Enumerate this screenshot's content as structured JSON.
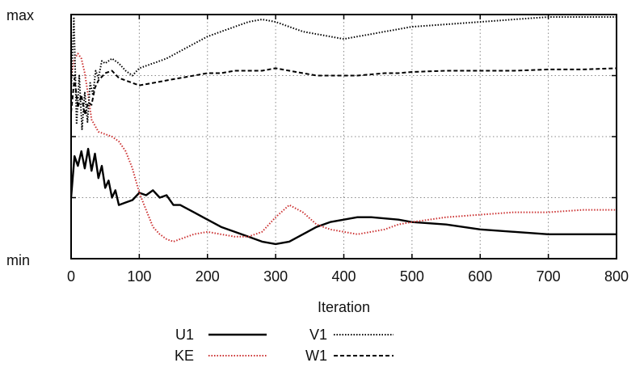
{
  "chart_data": {
    "type": "line",
    "title": "",
    "xlabel": "Iteration",
    "ylabel": "",
    "xlim": [
      0,
      800
    ],
    "ylim": [
      0,
      1
    ],
    "x_ticks": [
      "0",
      "100",
      "200",
      "300",
      "400",
      "500",
      "600",
      "700",
      "800"
    ],
    "y_tick_labels": {
      "top": "max",
      "bottom": "min"
    },
    "grid": true,
    "legend": "bottom",
    "series": [
      {
        "name": "U1",
        "color": "#000000",
        "dash": "solid",
        "x": [
          0,
          5,
          10,
          15,
          20,
          25,
          30,
          35,
          40,
          45,
          50,
          55,
          60,
          65,
          70,
          80,
          90,
          100,
          110,
          120,
          130,
          140,
          150,
          160,
          180,
          200,
          220,
          240,
          260,
          280,
          300,
          320,
          340,
          360,
          380,
          400,
          420,
          440,
          460,
          480,
          500,
          550,
          600,
          650,
          700,
          750,
          800
        ],
        "y": [
          0.25,
          0.42,
          0.38,
          0.44,
          0.37,
          0.45,
          0.36,
          0.43,
          0.33,
          0.38,
          0.29,
          0.32,
          0.25,
          0.28,
          0.22,
          0.23,
          0.24,
          0.27,
          0.26,
          0.28,
          0.25,
          0.26,
          0.22,
          0.22,
          0.19,
          0.16,
          0.13,
          0.11,
          0.09,
          0.07,
          0.06,
          0.07,
          0.1,
          0.13,
          0.15,
          0.16,
          0.17,
          0.17,
          0.165,
          0.16,
          0.15,
          0.14,
          0.12,
          0.11,
          0.1,
          0.1,
          0.1
        ]
      },
      {
        "name": "KE",
        "color": "#cc3333",
        "dash": "dotted",
        "x": [
          0,
          5,
          10,
          15,
          20,
          25,
          30,
          40,
          50,
          60,
          70,
          80,
          90,
          100,
          110,
          120,
          130,
          140,
          150,
          160,
          180,
          200,
          220,
          240,
          260,
          280,
          300,
          320,
          340,
          360,
          380,
          400,
          420,
          440,
          460,
          480,
          500,
          550,
          600,
          650,
          700,
          750,
          800
        ],
        "y": [
          0.74,
          0.82,
          0.84,
          0.82,
          0.76,
          0.67,
          0.57,
          0.52,
          0.51,
          0.5,
          0.48,
          0.44,
          0.37,
          0.27,
          0.2,
          0.13,
          0.1,
          0.08,
          0.07,
          0.08,
          0.1,
          0.11,
          0.1,
          0.09,
          0.09,
          0.11,
          0.17,
          0.22,
          0.19,
          0.14,
          0.12,
          0.11,
          0.1,
          0.11,
          0.12,
          0.14,
          0.15,
          0.17,
          0.18,
          0.19,
          0.19,
          0.2,
          0.2
        ]
      },
      {
        "name": "V1",
        "color": "#000000",
        "dash": "dotted",
        "x": [
          0,
          4,
          8,
          12,
          16,
          20,
          24,
          28,
          32,
          36,
          40,
          45,
          50,
          60,
          70,
          80,
          90,
          100,
          120,
          140,
          160,
          180,
          200,
          220,
          240,
          260,
          280,
          300,
          320,
          340,
          360,
          380,
          400,
          420,
          440,
          460,
          480,
          500,
          550,
          600,
          650,
          700,
          750,
          800
        ],
        "y": [
          0.68,
          0.99,
          0.55,
          0.75,
          0.53,
          0.68,
          0.56,
          0.72,
          0.67,
          0.77,
          0.74,
          0.81,
          0.8,
          0.82,
          0.8,
          0.77,
          0.75,
          0.78,
          0.8,
          0.82,
          0.85,
          0.88,
          0.91,
          0.93,
          0.95,
          0.97,
          0.98,
          0.97,
          0.95,
          0.93,
          0.92,
          0.91,
          0.9,
          0.91,
          0.92,
          0.93,
          0.94,
          0.95,
          0.96,
          0.97,
          0.98,
          0.99,
          0.99,
          0.99
        ]
      },
      {
        "name": "W1",
        "color": "#000000",
        "dash": "dashed",
        "x": [
          0,
          5,
          10,
          15,
          20,
          25,
          30,
          35,
          40,
          50,
          60,
          70,
          80,
          90,
          100,
          120,
          140,
          160,
          180,
          200,
          220,
          240,
          260,
          280,
          300,
          320,
          340,
          360,
          380,
          400,
          420,
          440,
          460,
          480,
          500,
          550,
          600,
          650,
          700,
          750,
          800
        ],
        "y": [
          0.6,
          0.74,
          0.62,
          0.67,
          0.59,
          0.64,
          0.63,
          0.7,
          0.73,
          0.76,
          0.77,
          0.74,
          0.73,
          0.72,
          0.71,
          0.72,
          0.73,
          0.74,
          0.75,
          0.76,
          0.76,
          0.77,
          0.77,
          0.77,
          0.78,
          0.77,
          0.76,
          0.75,
          0.75,
          0.75,
          0.75,
          0.755,
          0.76,
          0.76,
          0.765,
          0.77,
          0.77,
          0.77,
          0.775,
          0.775,
          0.78
        ]
      }
    ]
  }
}
